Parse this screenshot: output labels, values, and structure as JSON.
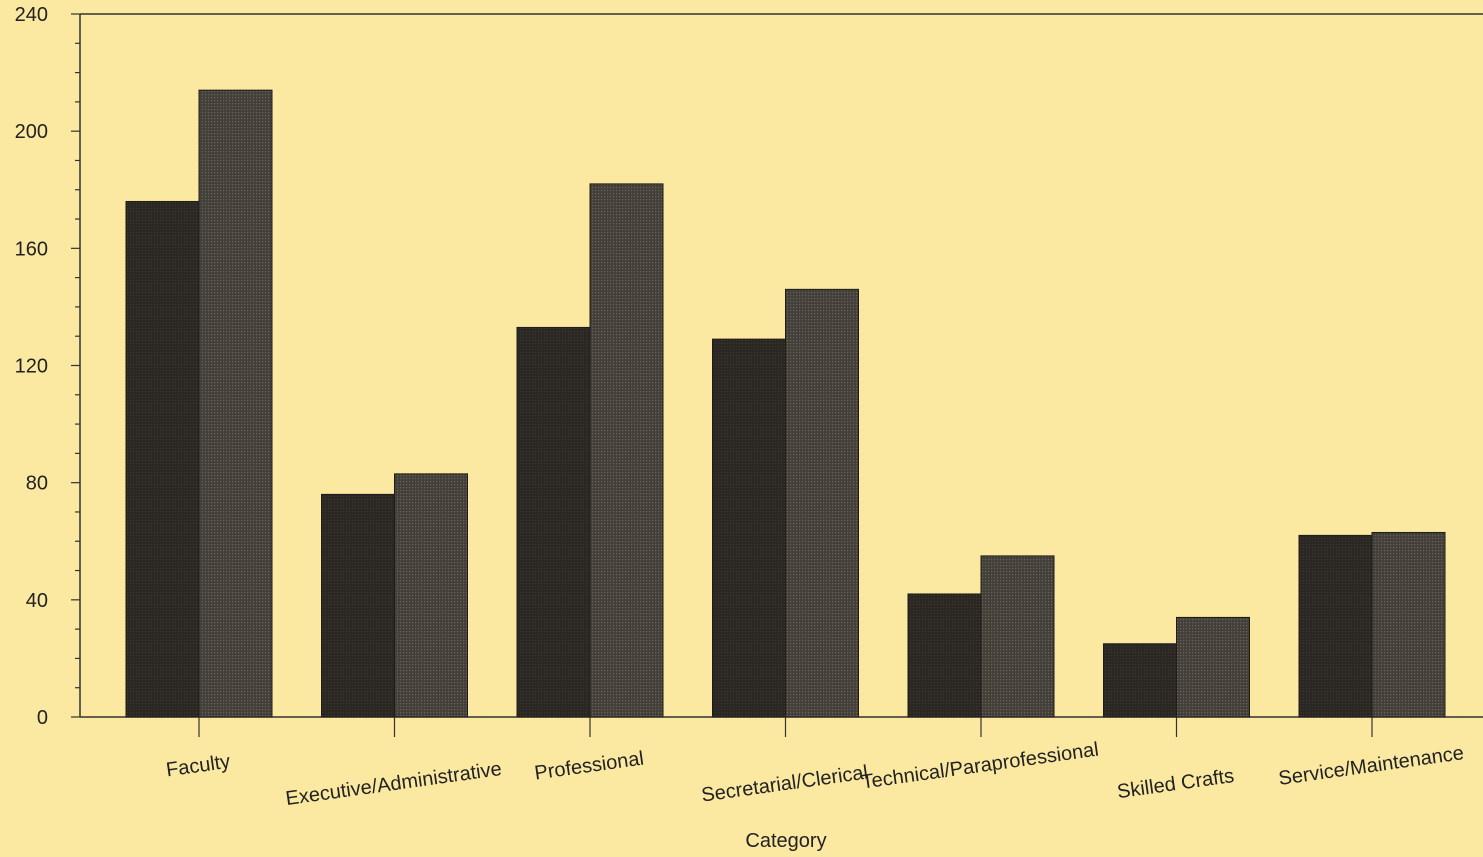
{
  "chart_data": {
    "type": "bar",
    "xlabel": "Category",
    "ylabel": "",
    "ylim": [
      0,
      240
    ],
    "yticks": [
      0,
      40,
      80,
      120,
      160,
      200,
      240
    ],
    "grid": false,
    "legend": "none",
    "categories": [
      "Faculty",
      "Executive/Administrative",
      "Professional",
      "Secretarial/Clerical",
      "Technical/Paraprofessional",
      "Skilled Crafts",
      "Service/Maintenance"
    ],
    "series": [
      {
        "values": [
          176,
          76,
          133,
          129,
          42,
          25,
          62
        ],
        "color": "#2b2823"
      },
      {
        "values": [
          214,
          83,
          182,
          146,
          55,
          34,
          63
        ],
        "color": "#4a4640"
      }
    ]
  }
}
